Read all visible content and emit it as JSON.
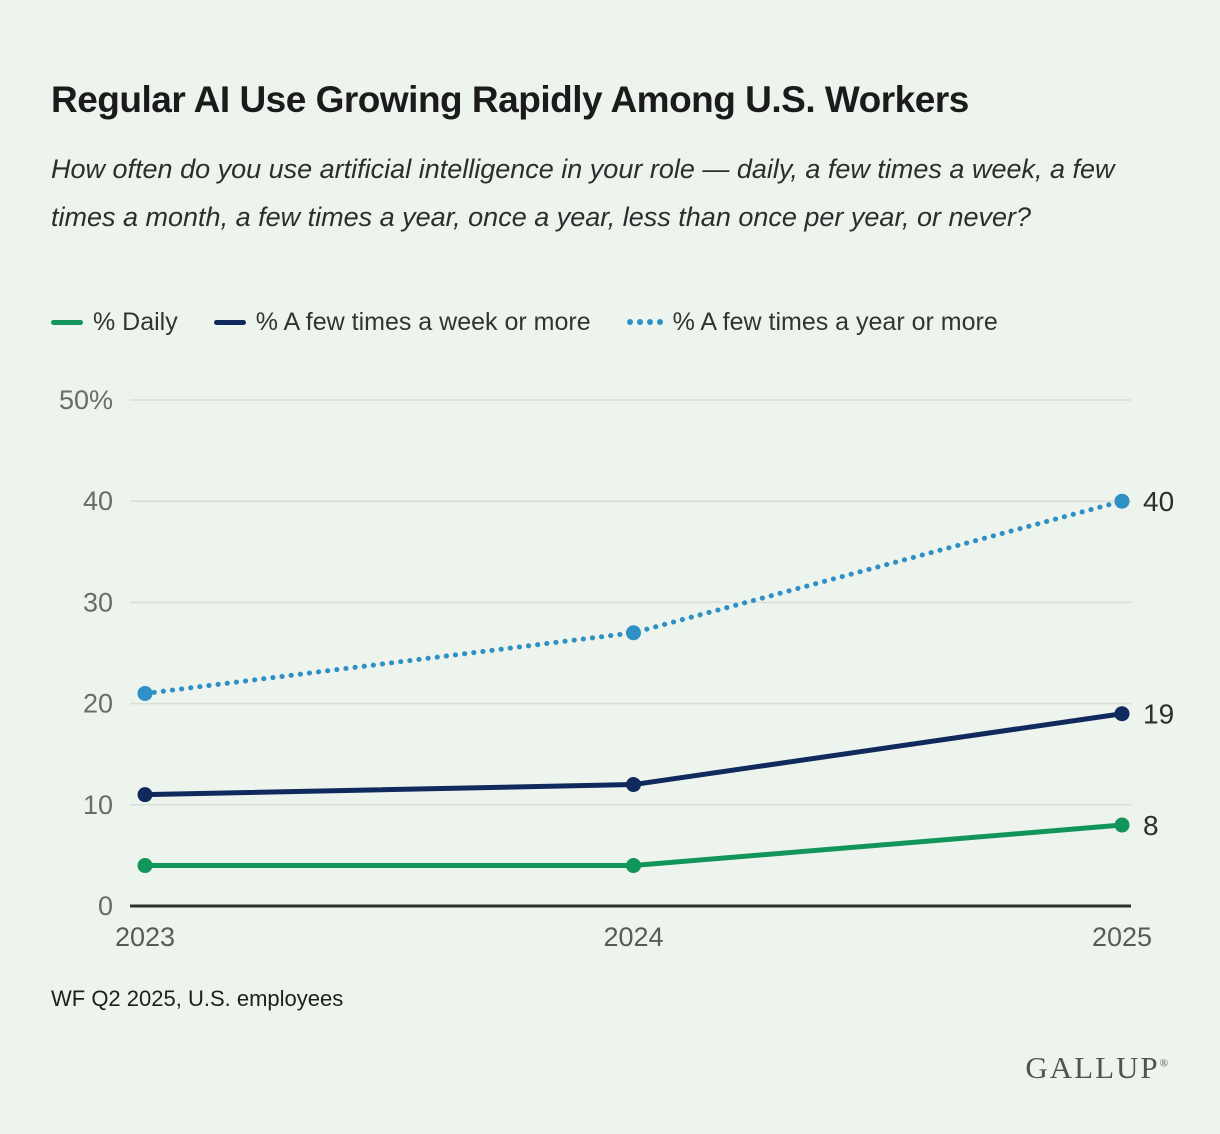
{
  "page": {
    "background": "#edf3ed",
    "title": "Regular AI Use Growing Rapidly Among U.S. Workers",
    "subtitle": "How often do you use artificial intelligence in your role — daily, a few times a week, a few times a month, a few times a year, once a year, less than once per year, or never?",
    "footnote": "WF Q2 2025, U.S. employees",
    "logo": "GALLUP",
    "logo_reg": "®"
  },
  "chart_data": {
    "type": "line",
    "x": [
      2023,
      2024,
      2025
    ],
    "xtick_labels": [
      "2023",
      "2024",
      "2025"
    ],
    "series": [
      {
        "key": "daily",
        "name": "% Daily",
        "values": [
          4,
          4,
          8
        ],
        "color": "#12955a",
        "style": "solid",
        "end_label": "8"
      },
      {
        "key": "weekly",
        "name": "% A few times a week or more",
        "values": [
          11,
          12,
          19
        ],
        "color": "#112a5e",
        "style": "solid",
        "end_label": "19"
      },
      {
        "key": "yearly",
        "name": "% A few times a year or more",
        "values": [
          21,
          27,
          40
        ],
        "color": "#2f90c6",
        "style": "dotted",
        "end_label": "40"
      }
    ],
    "ylim": [
      0,
      50
    ],
    "yticks": [
      0,
      10,
      20,
      30,
      40,
      50
    ],
    "ytick_labels": [
      "0",
      "10",
      "20",
      "30",
      "40",
      "50%"
    ],
    "grid": "horizontal",
    "grid_color": "#d9ded9",
    "axis_color": "#2f2f2f",
    "ytick_color": "#6b6b6b",
    "xtick_color": "#5a5a5a",
    "value_label_color": "#2e2e2e",
    "legend_position": "top"
  }
}
